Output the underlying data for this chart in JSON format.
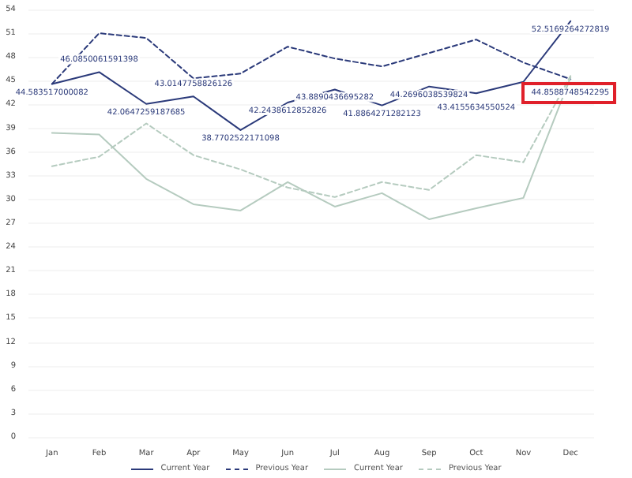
{
  "chart_data": {
    "type": "line",
    "categories": [
      "Jan",
      "Feb",
      "Mar",
      "Apr",
      "May",
      "Jun",
      "Jul",
      "Aug",
      "Sep",
      "Oct",
      "Nov",
      "Dec"
    ],
    "series": [
      {
        "name": "Current Year",
        "color": "#2b3a7a",
        "line_style": "solid",
        "values": [
          44.583517000082,
          46.0850061591398,
          42.0647259187685,
          43.0147758826126,
          38.7702522171098,
          42.2438612852826,
          43.8890436695282,
          41.8864271282123,
          44.2696038539824,
          43.4155634550524,
          44.8588748542295,
          52.5169264272819
        ],
        "value_labels": [
          "44.583517000082",
          "46.0850061591398",
          "42.0647259187685",
          "43.0147758826126",
          "38.7702522171098",
          "42.2438612852826",
          "43.8890436695282",
          "41.8864271282123",
          "44.2696038539824",
          "43.4155634550524",
          null,
          "52.5169264272819"
        ]
      },
      {
        "name": "Previous Year",
        "color": "#2b3a7a",
        "line_style": "dashed",
        "values": [
          44.6,
          51.0,
          50.4,
          45.3,
          45.9,
          49.3,
          47.8,
          46.8,
          48.5,
          50.2,
          47.3,
          45.2
        ]
      },
      {
        "name": "Current Year",
        "color": "#b5cbbf",
        "line_style": "solid",
        "values": [
          38.4,
          38.2,
          32.6,
          29.4,
          28.6,
          32.2,
          29.1,
          30.8,
          27.5,
          28.9,
          30.2,
          45.4
        ]
      },
      {
        "name": "Previous Year",
        "color": "#b5cbbf",
        "line_style": "dashed",
        "values": [
          34.2,
          35.4,
          39.6,
          35.6,
          33.8,
          31.5,
          30.3,
          32.2,
          31.2,
          35.6,
          34.7,
          45.6
        ]
      }
    ],
    "ylim": [
      0,
      54
    ],
    "yticks": [
      0,
      3,
      6,
      9,
      12,
      15,
      18,
      21,
      24,
      27,
      30,
      33,
      36,
      39,
      42,
      45,
      48,
      51,
      54
    ],
    "grid": "y",
    "legend": "bottom",
    "marker": "none",
    "annotations": [
      {
        "text": "44.8588748542295",
        "x": "Nov",
        "y": 44.8588748542295
      }
    ]
  }
}
